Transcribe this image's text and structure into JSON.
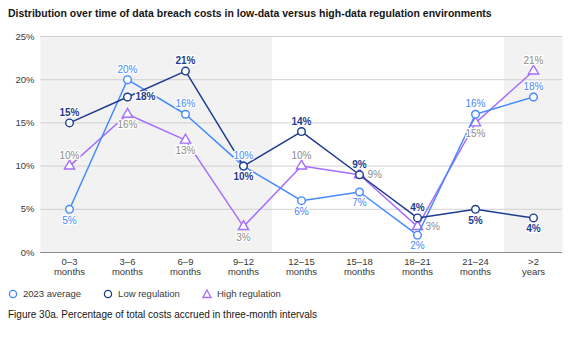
{
  "chart_data": {
    "type": "line",
    "title": "Distribution over time of data breach costs in low-data versus high-data regulation environments",
    "caption": "Figure 30a. Percentage of total costs accrued in three-month intervals",
    "categories": [
      "0–3 months",
      "3–6 months",
      "6–9 months",
      "9–12 months",
      "12–15 months",
      "15–18 months",
      "18–21 months",
      "21–24 months",
      ">2 years"
    ],
    "series": [
      {
        "name": "2023 average",
        "color": "#4589ff",
        "marker": "circle",
        "values": [
          5,
          20,
          16,
          10,
          6,
          7,
          2,
          16,
          18
        ],
        "value_labels": [
          "5%",
          "20%",
          "16%",
          "10%",
          "6%",
          "7%",
          "2%",
          "16%",
          "18%"
        ]
      },
      {
        "name": "Low regulation",
        "color": "#1d3c8f",
        "marker": "circle",
        "values": [
          15,
          18,
          21,
          10,
          14,
          9,
          4,
          5,
          4
        ],
        "value_labels": [
          "15%",
          "18%",
          "21%",
          "10%",
          "14%",
          "9%",
          "4%",
          "5%",
          "4%"
        ]
      },
      {
        "name": "High regulation",
        "color": "#a56eff",
        "marker": "triangle",
        "values": [
          10,
          16,
          13,
          3,
          10,
          9,
          3,
          15,
          21
        ],
        "value_labels": [
          "10%",
          "16%",
          "13%",
          "3%",
          "10%",
          "9%",
          "3%",
          "15%",
          "21%"
        ]
      }
    ],
    "ylim": [
      0,
      25
    ],
    "yticks": [
      {
        "value": 0,
        "label": "0%"
      },
      {
        "value": 5,
        "label": "5%"
      },
      {
        "value": 10,
        "label": "10%"
      },
      {
        "value": 15,
        "label": "15%"
      },
      {
        "value": 20,
        "label": "20%"
      },
      {
        "value": 25,
        "label": "25%"
      }
    ],
    "grid": true,
    "data_labels": true,
    "legend": "bottom"
  }
}
